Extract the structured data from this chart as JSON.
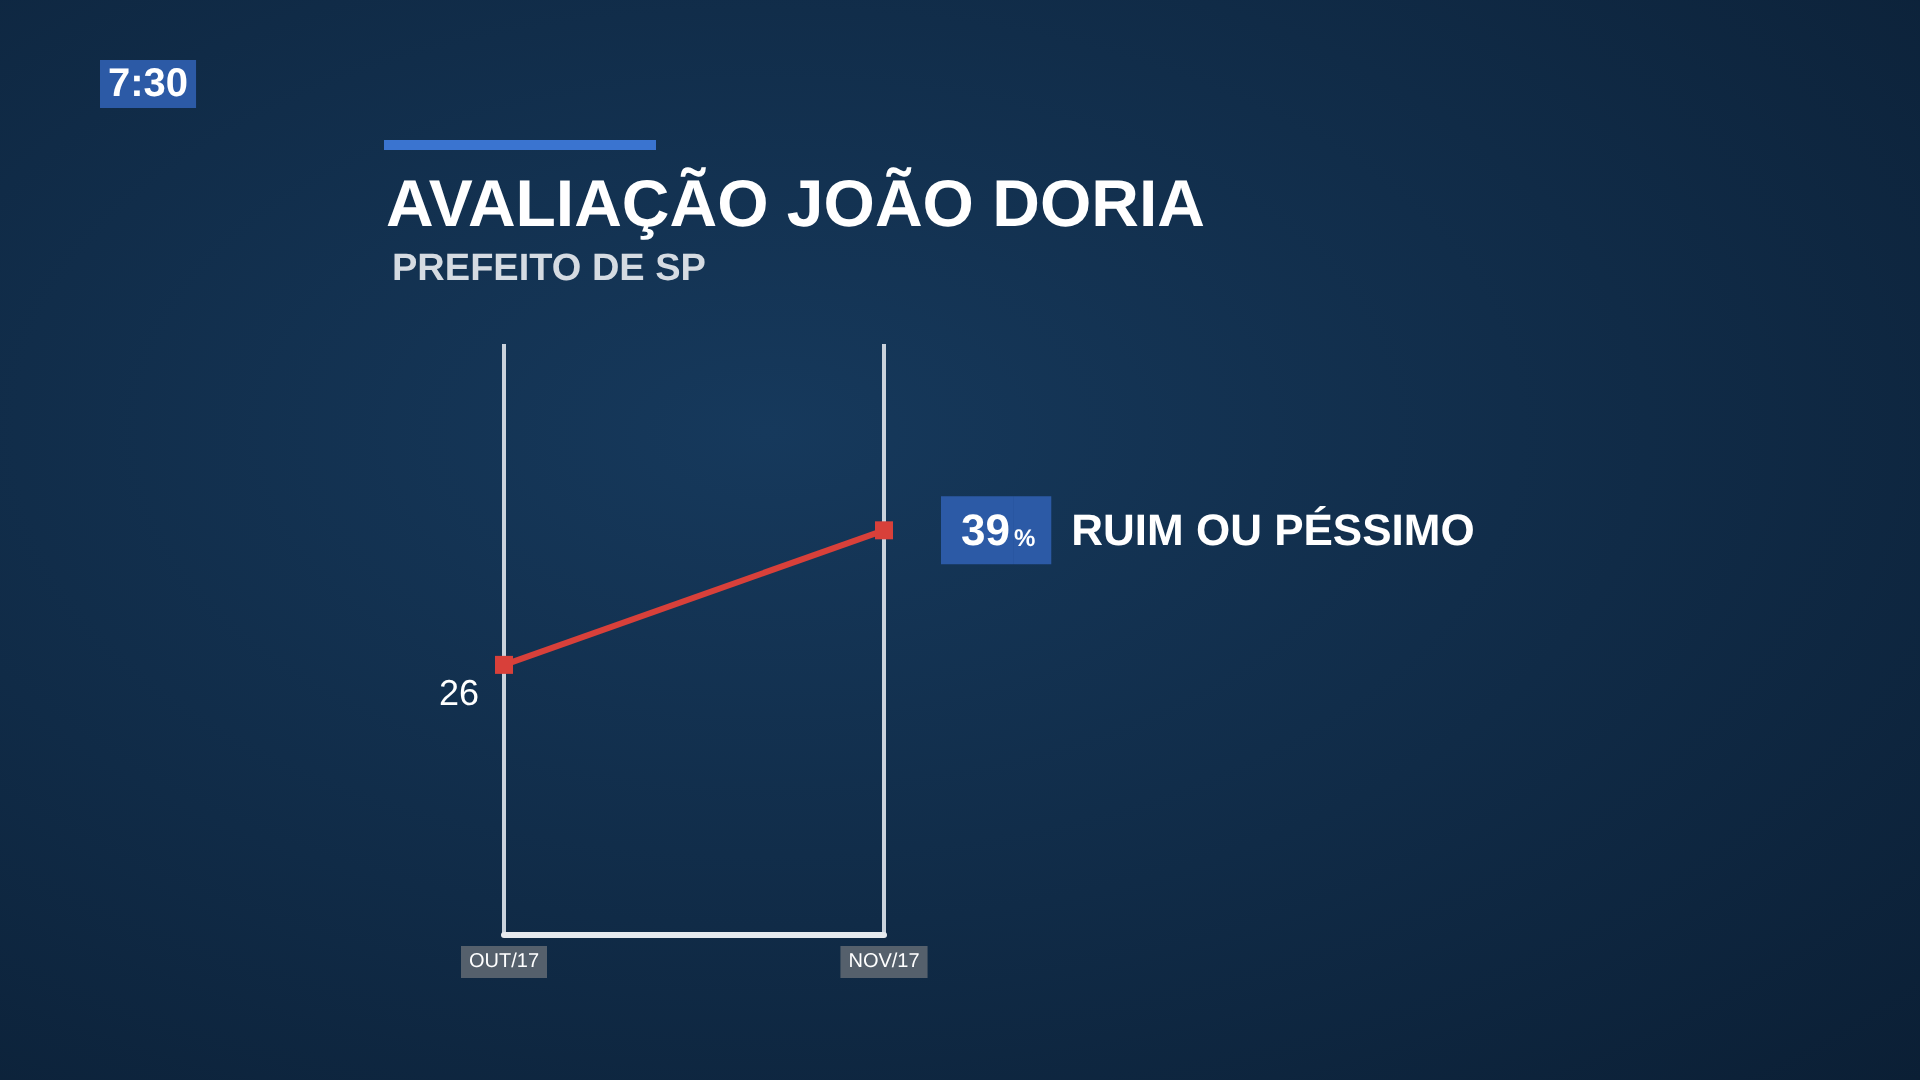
{
  "chart_data": {
    "type": "line",
    "title": "AVALIAÇÃO JOÃO DORIA",
    "subtitle": "PREFEITO DE SP",
    "annotations": [
      "7:30"
    ],
    "categories": [
      "OUT/17",
      "NOV/17"
    ],
    "series": [
      {
        "name": "RUIM OU PÉSSIMO",
        "color": "#d8403a",
        "values": [
          26,
          39
        ],
        "value_labels": [
          "26",
          "39%"
        ]
      }
    ],
    "ylim": [
      0,
      57
    ],
    "tick_labels": "x",
    "grid": "x",
    "legend": false,
    "marker": "square",
    "line_style": "solid"
  }
}
